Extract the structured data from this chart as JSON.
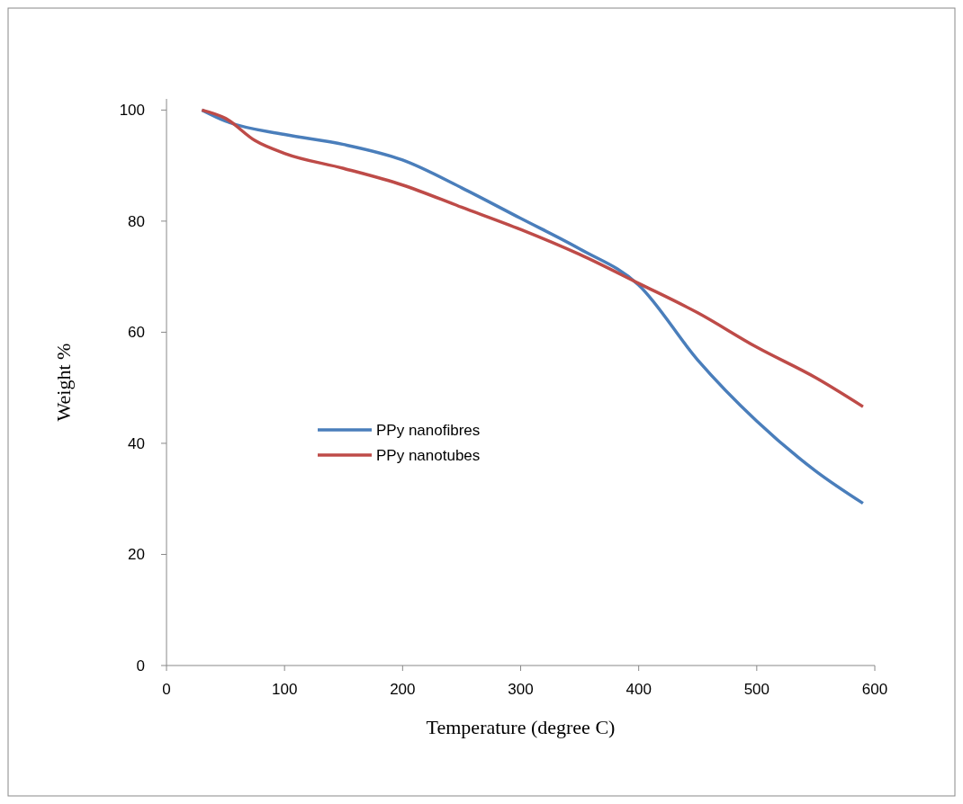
{
  "chart_data": {
    "type": "line",
    "xlabel": "Temperature (degree C)",
    "ylabel": "Weight %",
    "xlim": [
      0,
      600
    ],
    "xticks": [
      0,
      100,
      200,
      300,
      400,
      500,
      600
    ],
    "ylim": [
      0,
      102
    ],
    "yticks": [
      0,
      20,
      40,
      60,
      80,
      100
    ],
    "grid": false,
    "legend": "left",
    "marker": "none",
    "line_style": "solid",
    "series": [
      {
        "name": "PPy nanofibres",
        "color": "#4a7ebb",
        "x": [
          30,
          50,
          100,
          150,
          200,
          250,
          300,
          350,
          400,
          450,
          500,
          550,
          590
        ],
        "values": [
          100,
          98,
          95.6,
          93.8,
          91,
          86,
          80.5,
          75,
          68.5,
          55,
          44,
          35,
          29.2
        ]
      },
      {
        "name": "PPy nanotubes",
        "color": "#be4b48",
        "x": [
          30,
          50,
          75,
          100,
          150,
          200,
          250,
          300,
          350,
          400,
          450,
          500,
          550,
          590
        ],
        "values": [
          100,
          98.5,
          94.5,
          92.2,
          89.5,
          86.5,
          82.5,
          78.5,
          74,
          68.8,
          63.5,
          57.3,
          51.8,
          46.6
        ]
      }
    ]
  }
}
